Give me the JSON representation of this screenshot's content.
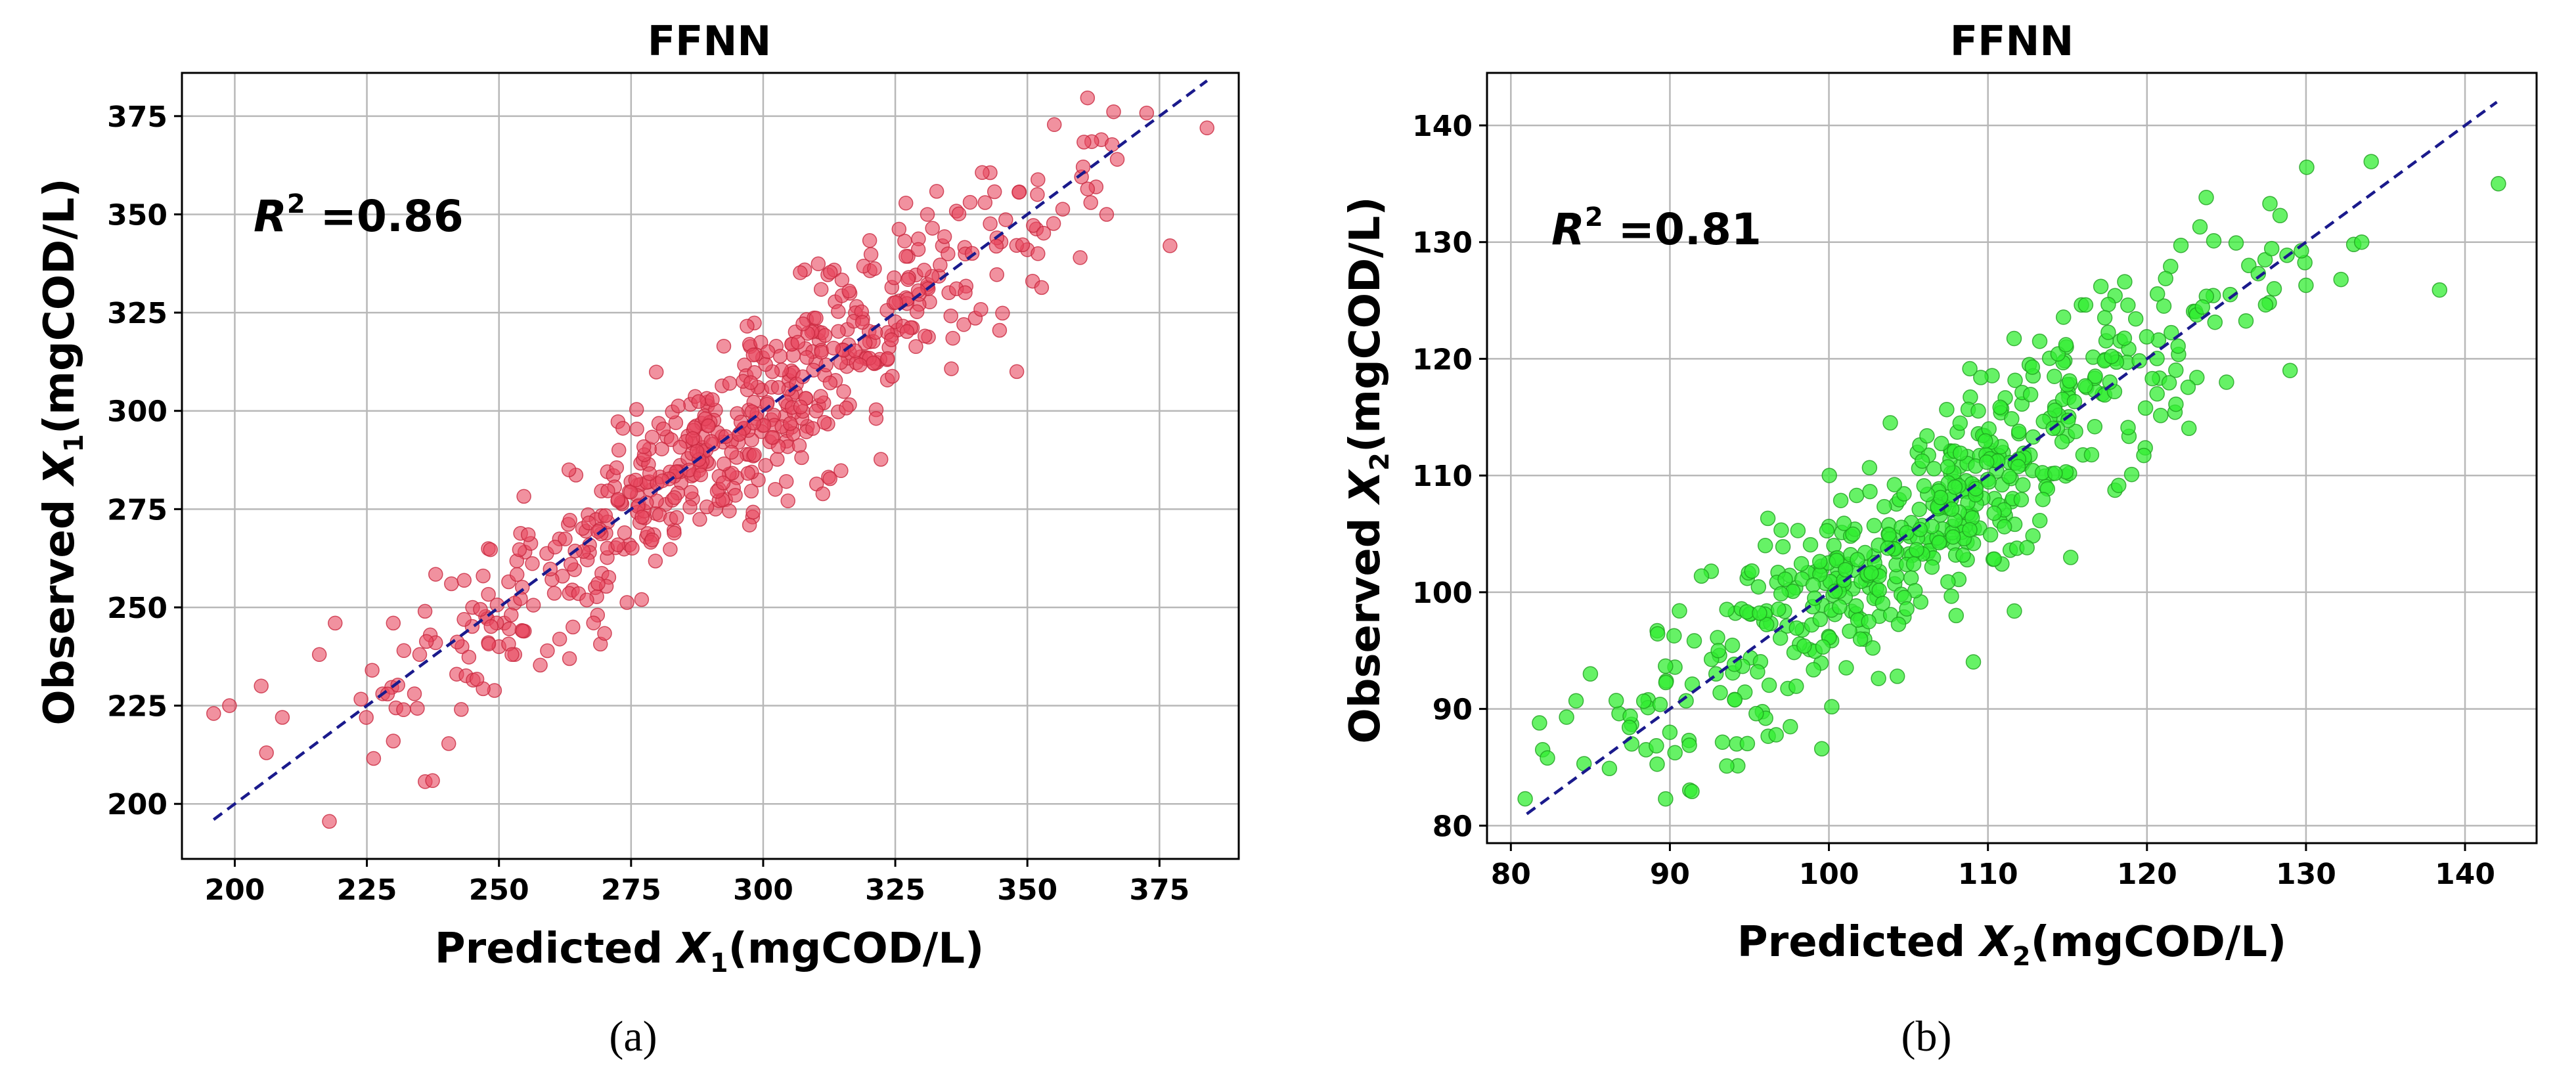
{
  "chart_data": [
    {
      "type": "scatter",
      "panel_label": "(a)",
      "title": "FFNN",
      "xlabel_prefix": "Predicted ",
      "xlabel_var": "X",
      "xlabel_sub": "1",
      "xlabel_unit": "(mgCOD/L)",
      "ylabel_prefix": "Observed ",
      "ylabel_var": "X",
      "ylabel_sub": "1",
      "ylabel_unit": "(mgCOD/L)",
      "annotation_var": "R",
      "annotation_sup": "2",
      "annotation_text": " =0.86",
      "xlim": [
        190,
        390
      ],
      "ylim": [
        186,
        386
      ],
      "xticks": [
        200,
        225,
        250,
        275,
        300,
        325,
        350,
        375
      ],
      "yticks": [
        200,
        225,
        250,
        275,
        300,
        325,
        350,
        375
      ],
      "grid": true,
      "point_color": "#e8485f",
      "point_edge_color": "#c8283f",
      "point_opacity": 0.6,
      "fit_line_color": "#1a1a8c",
      "fit_line": [
        [
          196,
          196
        ],
        [
          384,
          384
        ]
      ],
      "n_generated": 560,
      "seed": 1234,
      "spread": 11,
      "distribution_mean": 296,
      "distribution_sd": 30,
      "points": [
        [
          196,
          223
        ],
        [
          199,
          225
        ],
        [
          205,
          230
        ],
        [
          206,
          213
        ],
        [
          209,
          222
        ],
        [
          216,
          238
        ],
        [
          219,
          246
        ],
        [
          226,
          234
        ],
        [
          228,
          228
        ],
        [
          230,
          216
        ],
        [
          230,
          246
        ],
        [
          232,
          239
        ],
        [
          234,
          228
        ],
        [
          235,
          238
        ],
        [
          236,
          249
        ],
        [
          237,
          243
        ],
        [
          238,
          241
        ],
        [
          241,
          256
        ],
        [
          242,
          233
        ],
        [
          243,
          240
        ],
        [
          245,
          250
        ],
        [
          247,
          258
        ],
        [
          248,
          241
        ],
        [
          250,
          240
        ],
        [
          251,
          246
        ],
        [
          253,
          238
        ],
        [
          264,
          245
        ],
        [
          277,
          252
        ],
        [
          291,
          275
        ],
        [
          295,
          283
        ],
        [
          298,
          273
        ],
        [
          342,
          353
        ],
        [
          345,
          343
        ],
        [
          348,
          310
        ],
        [
          350,
          341
        ],
        [
          351,
          333
        ],
        [
          352,
          340
        ],
        [
          360,
          339
        ],
        [
          362,
          353
        ],
        [
          363,
          357
        ],
        [
          364,
          369
        ],
        [
          365,
          350
        ],
        [
          367,
          364
        ],
        [
          377,
          342
        ],
        [
          384,
          372
        ]
      ]
    },
    {
      "type": "scatter",
      "panel_label": "(b)",
      "title": "FFNN",
      "xlabel_prefix": "Predicted ",
      "xlabel_var": "X",
      "xlabel_sub": "2",
      "xlabel_unit": "(mgCOD/L)",
      "ylabel_prefix": "Observed ",
      "ylabel_var": "X",
      "ylabel_sub": "2",
      "ylabel_unit": "(mgCOD/L)",
      "annotation_var": "R",
      "annotation_sup": "2",
      "annotation_text": " =0.81",
      "xlim": [
        78.5,
        144.5
      ],
      "ylim": [
        78.5,
        144.5
      ],
      "xticks": [
        80,
        90,
        100,
        110,
        120,
        130,
        140
      ],
      "yticks": [
        80,
        90,
        100,
        110,
        120,
        130,
        140
      ],
      "grid": true,
      "point_color": "#33ee33",
      "point_edge_color": "#1f9f1f",
      "point_opacity": 0.75,
      "fit_line_color": "#1a1a8c",
      "fit_line": [
        [
          81,
          81
        ],
        [
          142,
          142
        ]
      ],
      "n_generated": 520,
      "seed": 98765,
      "spread": 4.3,
      "distribution_mean": 107,
      "distribution_sd": 9.5,
      "points": [
        [
          80.9,
          82.3
        ],
        [
          81.8,
          88.8
        ],
        [
          82.0,
          86.5
        ],
        [
          82.3,
          85.8
        ],
        [
          83.5,
          89.3
        ],
        [
          84.1,
          90.7
        ],
        [
          84.6,
          85.3
        ],
        [
          85.0,
          93.0
        ],
        [
          86.2,
          84.9
        ],
        [
          86.8,
          89.6
        ],
        [
          87.6,
          87.0
        ],
        [
          88.5,
          86.5
        ],
        [
          89.2,
          96.7
        ],
        [
          90.0,
          88.0
        ],
        [
          90.6,
          98.4
        ],
        [
          91.2,
          87.3
        ],
        [
          92.6,
          101.8
        ],
        [
          92.9,
          93.0
        ],
        [
          94.2,
          87.0
        ],
        [
          96.0,
          104.0
        ],
        [
          97.5,
          100.2
        ],
        [
          104.3,
          92.8
        ],
        [
          108.0,
          98.0
        ],
        [
          111.4,
          103.6
        ],
        [
          112.6,
          119.5
        ],
        [
          117.1,
          126.2
        ],
        [
          118.6,
          126.6
        ],
        [
          125.0,
          118.0
        ],
        [
          126.4,
          128.0
        ],
        [
          127.0,
          127.3
        ],
        [
          128.0,
          126.0
        ],
        [
          129.0,
          119.0
        ],
        [
          130.0,
          126.3
        ],
        [
          132.2,
          126.8
        ],
        [
          133.0,
          129.8
        ],
        [
          133.5,
          130.0
        ],
        [
          134.1,
          136.9
        ],
        [
          138.4,
          125.9
        ],
        [
          142.1,
          135.0
        ]
      ]
    }
  ]
}
